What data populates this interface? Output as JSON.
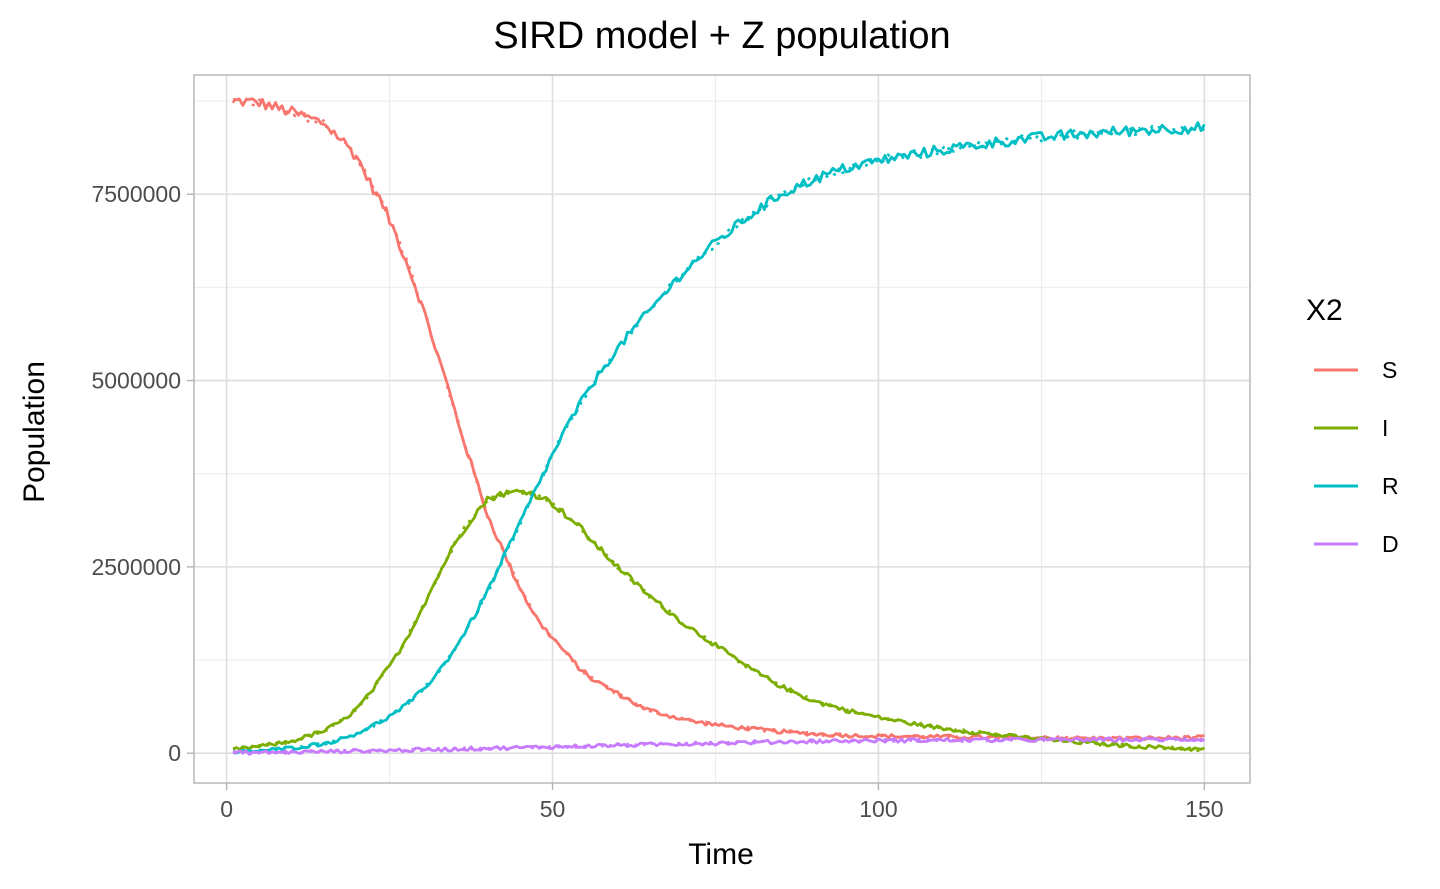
{
  "chart_data": {
    "type": "line",
    "title": "SIRD model + Z population",
    "xlabel": "Time",
    "ylabel": "Population",
    "xlim": [
      -5,
      157
    ],
    "ylim": [
      -400000,
      9100000
    ],
    "x_ticks": [
      0,
      50,
      100,
      150
    ],
    "y_ticks": [
      0,
      2500000,
      5000000,
      7500000
    ],
    "x_tick_labels": [
      "0",
      "50",
      "100",
      "150"
    ],
    "y_tick_labels": [
      "0",
      "2500000",
      "5000000",
      "7500000"
    ],
    "grid": true,
    "legend": {
      "title": "X2",
      "position": "right"
    },
    "series": [
      {
        "name": "S",
        "color": "#F8766D",
        "x": [
          1,
          5,
          10,
          15,
          18,
          20,
          22,
          24,
          26,
          28,
          30,
          32,
          34,
          36,
          38,
          40,
          42,
          44,
          46,
          48,
          50,
          52,
          54,
          56,
          60,
          64,
          68,
          72,
          76,
          80,
          85,
          90,
          95,
          100,
          110,
          120,
          130,
          140,
          150
        ],
        "y": [
          8750000,
          8730000,
          8600000,
          8450000,
          8200000,
          8000000,
          7650000,
          7350000,
          6950000,
          6500000,
          6000000,
          5450000,
          4900000,
          4300000,
          3750000,
          3200000,
          2800000,
          2400000,
          2050000,
          1750000,
          1550000,
          1350000,
          1150000,
          1000000,
          800000,
          600000,
          500000,
          420000,
          370000,
          330000,
          290000,
          260000,
          240000,
          230000,
          220000,
          210000,
          200000,
          200000,
          210000
        ]
      },
      {
        "name": "I",
        "color": "#7CAE00",
        "x": [
          1,
          5,
          10,
          15,
          18,
          20,
          22,
          24,
          26,
          28,
          30,
          32,
          34,
          36,
          38,
          40,
          42,
          44,
          46,
          48,
          50,
          52,
          54,
          56,
          60,
          65,
          70,
          75,
          80,
          85,
          90,
          95,
          100,
          105,
          110,
          115,
          120,
          130,
          140,
          150
        ],
        "y": [
          50000,
          90000,
          160000,
          300000,
          450000,
          600000,
          800000,
          1050000,
          1300000,
          1600000,
          1950000,
          2300000,
          2650000,
          2950000,
          3200000,
          3400000,
          3480000,
          3500000,
          3520000,
          3450000,
          3350000,
          3200000,
          3050000,
          2850000,
          2500000,
          2100000,
          1750000,
          1450000,
          1150000,
          900000,
          700000,
          580000,
          480000,
          400000,
          330000,
          280000,
          230000,
          150000,
          90000,
          50000
        ]
      },
      {
        "name": "R",
        "color": "#00BFC4",
        "x": [
          1,
          5,
          10,
          15,
          18,
          20,
          22,
          24,
          26,
          28,
          30,
          32,
          34,
          36,
          38,
          40,
          42,
          44,
          46,
          48,
          50,
          52,
          55,
          58,
          62,
          66,
          70,
          75,
          80,
          85,
          90,
          95,
          100,
          110,
          120,
          130,
          140,
          150
        ],
        "y": [
          10000,
          30000,
          70000,
          130000,
          200000,
          270000,
          350000,
          440000,
          550000,
          680000,
          840000,
          1040000,
          1270000,
          1540000,
          1840000,
          2170000,
          2530000,
          2900000,
          3270000,
          3640000,
          4000000,
          4350000,
          4800000,
          5200000,
          5650000,
          6050000,
          6450000,
          6850000,
          7200000,
          7500000,
          7700000,
          7850000,
          7950000,
          8100000,
          8220000,
          8300000,
          8360000,
          8400000
        ]
      },
      {
        "name": "D",
        "color": "#C77CFF",
        "x": [
          1,
          10,
          20,
          30,
          40,
          50,
          60,
          70,
          80,
          90,
          100,
          110,
          120,
          130,
          140,
          150
        ],
        "y": [
          5000,
          15000,
          30000,
          45000,
          65000,
          85000,
          105000,
          125000,
          145000,
          160000,
          170000,
          175000,
          178000,
          180000,
          182000,
          185000
        ]
      }
    ]
  }
}
